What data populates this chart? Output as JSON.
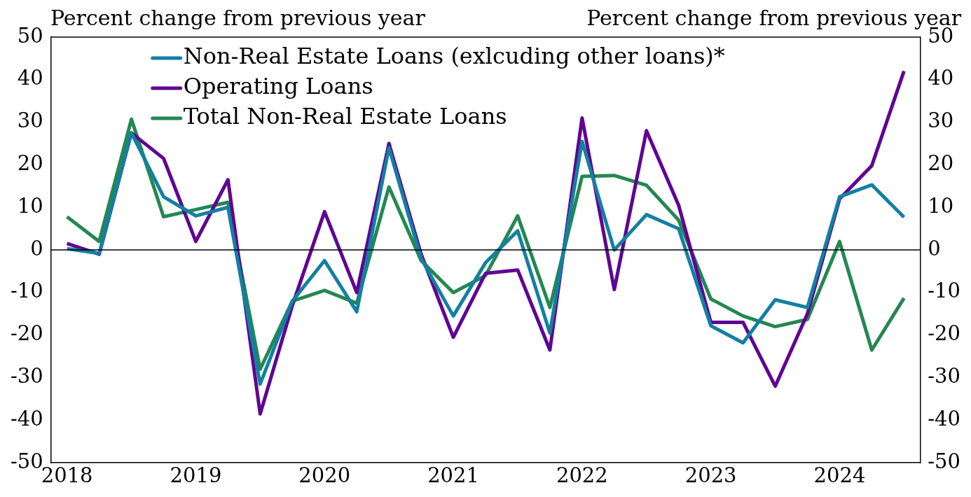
{
  "chart_data": {
    "type": "line",
    "ylabel": "Percent change from previous year",
    "y2label": "Percent change from previous year",
    "categories": [
      "2018",
      null,
      null,
      null,
      "2019",
      null,
      null,
      null,
      "2020",
      null,
      null,
      null,
      "2021",
      null,
      null,
      null,
      "2022",
      null,
      null,
      null,
      "2023",
      null,
      null,
      null,
      "2024",
      null,
      null
    ],
    "series": [
      {
        "name": "Non-Real Estate Loans (exlcuding other loans)*",
        "color": "#1380a1",
        "values": [
          0.3,
          -0.8,
          27.5,
          12.5,
          8,
          10,
          -31.5,
          -12,
          -2.5,
          -14.5,
          24,
          -2,
          -15.5,
          -3,
          4.5,
          -19.5,
          25.5,
          0,
          8.3,
          5,
          -17.8,
          -21.8,
          -11.7,
          -13.5,
          12.5,
          15.3,
          7.7
        ]
      },
      {
        "name": "Operating Loans",
        "color": "#5f0593",
        "values": [
          1.5,
          -1,
          27.5,
          21.5,
          2,
          16.5,
          -38.5,
          -13,
          9,
          -10,
          25,
          -1,
          -20.5,
          -5.5,
          -4.7,
          -23.5,
          31,
          -9.3,
          28,
          10.5,
          -17,
          -17,
          -32,
          -15,
          12,
          19.8,
          42
        ]
      },
      {
        "name": "Total Non-Real Estate Loans",
        "color": "#258751",
        "values": [
          7.8,
          2,
          30.7,
          7.8,
          9.5,
          11.2,
          -28,
          -12,
          -9.5,
          -12.5,
          14.8,
          -2.5,
          -10,
          -6,
          8,
          -13.5,
          17.3,
          17.5,
          15.2,
          7,
          -11.5,
          -15.5,
          -18,
          -16.3,
          2,
          -23.5,
          -11.3
        ]
      }
    ],
    "ylim": [
      -50,
      50
    ],
    "yticks": [
      -50,
      -40,
      -30,
      -20,
      -10,
      0,
      10,
      20,
      30,
      40,
      50
    ],
    "y2lim": [
      -50,
      50
    ],
    "y2ticks": [
      -50,
      -40,
      -30,
      -20,
      -10,
      0,
      10,
      20,
      30,
      40,
      50
    ],
    "ref_lines": [
      {
        "axis": "y",
        "value": 0,
        "color": "#000000"
      }
    ],
    "grid": false,
    "legend": "top",
    "marker": "none",
    "line_style": "solid"
  }
}
